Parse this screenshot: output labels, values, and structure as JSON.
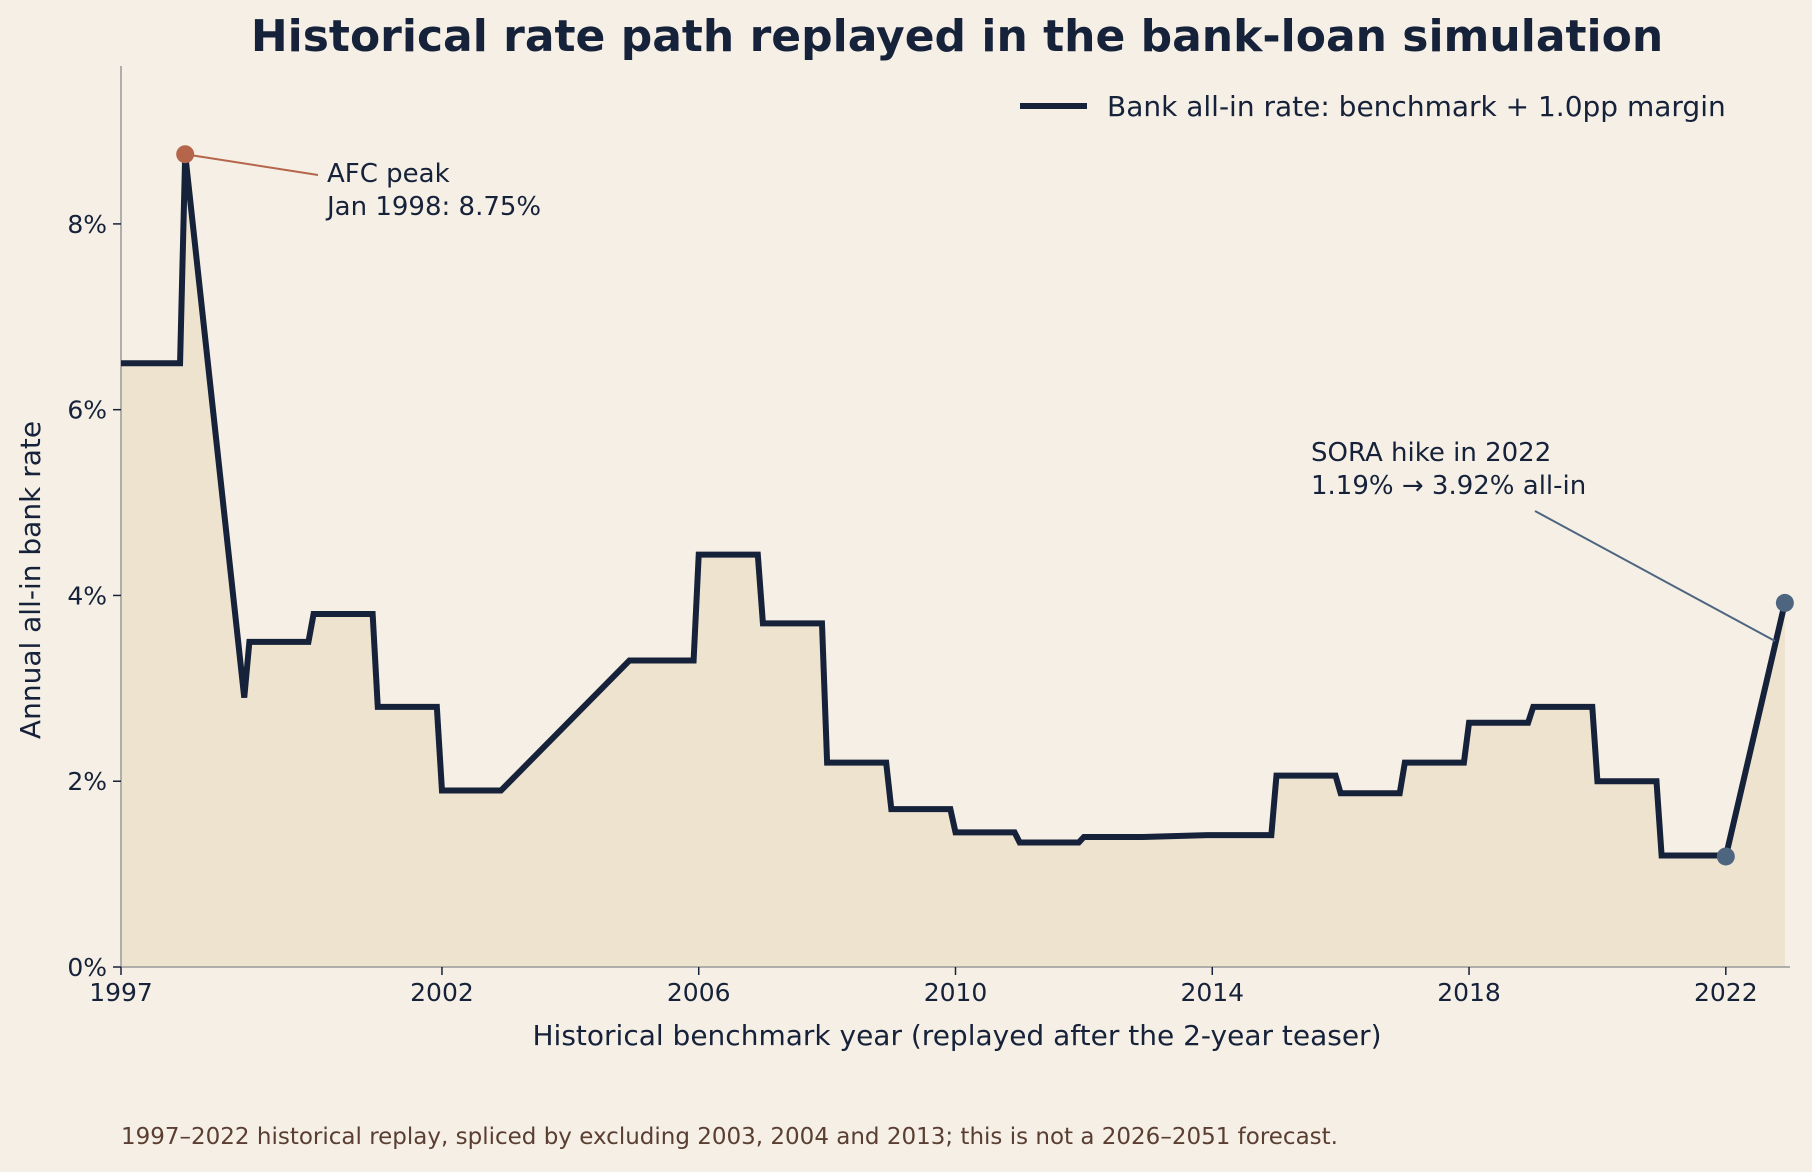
{
  "chart_data": {
    "type": "line",
    "title": "Historical rate path replayed in the bank-loan simulation",
    "xlabel": "Historical benchmark year (replayed after the 2-year teaser)",
    "ylabel": "Annual all-in bank rate",
    "xlim": [
      0,
      26
    ],
    "ylim": [
      0,
      9.7
    ],
    "x_ticks": [
      {
        "x": 0,
        "label": "1997"
      },
      {
        "x": 5,
        "label": "2002"
      },
      {
        "x": 9,
        "label": "2006"
      },
      {
        "x": 13,
        "label": "2010"
      },
      {
        "x": 17,
        "label": "2014"
      },
      {
        "x": 21,
        "label": "2018"
      },
      {
        "x": 25,
        "label": "2022"
      }
    ],
    "y_ticks": [
      0,
      2,
      4,
      6,
      8
    ],
    "y_tick_labels": [
      "0%",
      "2%",
      "4%",
      "6%",
      "8%"
    ],
    "legend_position": "top-right",
    "grid": false,
    "series": [
      {
        "name": "Bank all-in rate: benchmark + 1.0pp margin",
        "color": "#16213a",
        "points": [
          [
            0,
            6.5
          ],
          [
            0.92,
            6.5
          ],
          [
            1.0,
            8.75
          ],
          [
            1.92,
            2.9
          ],
          [
            2.0,
            3.5
          ],
          [
            2.92,
            3.5
          ],
          [
            3.0,
            3.8
          ],
          [
            3.92,
            3.8
          ],
          [
            4.0,
            2.8
          ],
          [
            4.92,
            2.8
          ],
          [
            5.0,
            1.9
          ],
          [
            5.92,
            1.9
          ],
          [
            7.92,
            3.3
          ],
          [
            8.92,
            3.3
          ],
          [
            9.0,
            4.44
          ],
          [
            9.92,
            4.44
          ],
          [
            10.0,
            3.7
          ],
          [
            10.92,
            3.7
          ],
          [
            11.0,
            2.2
          ],
          [
            11.92,
            2.2
          ],
          [
            12.0,
            1.7
          ],
          [
            12.92,
            1.7
          ],
          [
            13.0,
            1.45
          ],
          [
            13.92,
            1.45
          ],
          [
            14.0,
            1.34
          ],
          [
            14.92,
            1.34
          ],
          [
            15.0,
            1.4
          ],
          [
            15.92,
            1.4
          ],
          [
            16.92,
            1.42
          ],
          [
            17.92,
            1.42
          ],
          [
            18.0,
            2.06
          ],
          [
            18.92,
            2.06
          ],
          [
            19.0,
            1.87
          ],
          [
            19.92,
            1.87
          ],
          [
            20.0,
            2.2
          ],
          [
            20.92,
            2.2
          ],
          [
            21.0,
            2.63
          ],
          [
            21.92,
            2.63
          ],
          [
            22.0,
            2.8
          ],
          [
            22.92,
            2.8
          ],
          [
            23.0,
            2.0
          ],
          [
            23.92,
            2.0
          ],
          [
            24.0,
            1.2
          ],
          [
            24.92,
            1.2
          ],
          [
            25.0,
            1.19
          ],
          [
            25.92,
            3.92
          ]
        ]
      }
    ],
    "annotations": [
      {
        "lines": [
          "AFC peak",
          "Jan 1998: 8.75%"
        ],
        "point": [
          1.0,
          8.75
        ],
        "color": "#b5654a"
      },
      {
        "lines": [
          "SORA hike in 2022",
          "1.19% → 3.92% all-in"
        ],
        "point": [
          25.92,
          3.92
        ],
        "start": [
          25.0,
          1.19
        ],
        "color": "#4e6580"
      }
    ]
  },
  "footnote": "1997–2022 historical replay, spliced by excluding 2003, 2004 and 2013; this is not a 2026–2051 forecast."
}
